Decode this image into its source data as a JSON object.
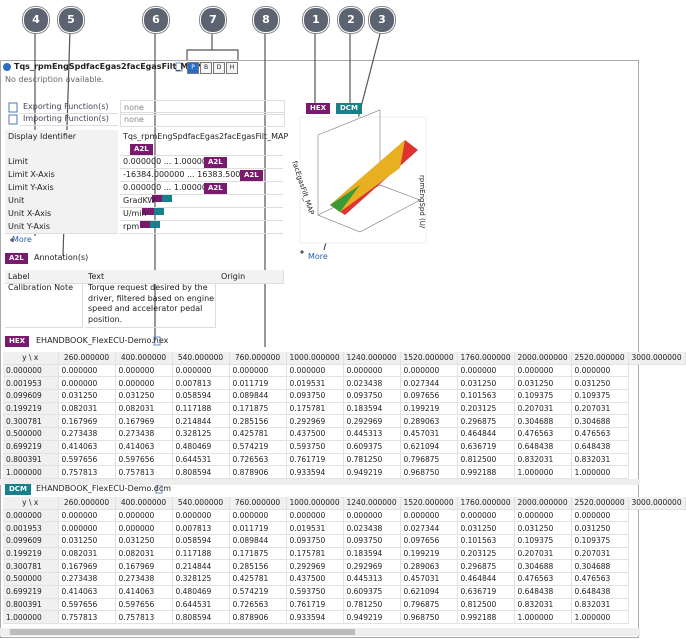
{
  "callouts": [
    "1",
    "2",
    "3",
    "4",
    "5",
    "6",
    "7",
    "8"
  ],
  "header": {
    "title": "Tqs_rpmEngSpdfacEgas2facEgasFilt_MAP",
    "buttons": [
      "P",
      "B",
      "D",
      "H"
    ],
    "description": "No description available."
  },
  "functions": [
    {
      "label": "Exporting Function(s)",
      "value": "none"
    },
    {
      "label": "Importing Function(s)",
      "value": "none"
    }
  ],
  "properties": [
    {
      "label": "Display Identifier",
      "value": "Tqs_rpmEngSpdfacEgas2facEgasFilt_MAP",
      "badge": "A2L"
    },
    {
      "label": "Limit",
      "value": "0.000000 ... 1.000000",
      "badge": "A2L"
    },
    {
      "label": "Limit X-Axis",
      "value": "-16384.000000 ... 16383.500000",
      "badge": "A2L"
    },
    {
      "label": "Limit Y-Axis",
      "value": "0.000000 ... 1.000000",
      "badge": "A2L"
    },
    {
      "label": "Unit",
      "value": "GradKW"
    },
    {
      "label": "Unit X-Axis",
      "value": "U/min"
    },
    {
      "label": "Unit Y-Axis",
      "value": "rpm"
    }
  ],
  "more_left": "More",
  "annotations": {
    "badge": "A2L",
    "title": "Annotation(s)",
    "columns": [
      "Label",
      "Text",
      "Origin"
    ],
    "rows": [
      [
        "Calibration Note",
        "Torque request desired by the driver, filtered based on engine speed and accelerator pedal position."
      ]
    ]
  },
  "hex": {
    "badge": "HEX",
    "file": "EHANDBOOK_FlexECU-Demo.hex",
    "columns": [
      "y \\ x",
      "260.000000",
      "400.000000",
      "540.000000",
      "760.000000",
      "1000.000000",
      "1240.000000",
      "1520.000000",
      "1760.000000",
      "2000.000000",
      "2520.000000",
      "3000.000000"
    ],
    "rows": [
      [
        "0.000000",
        "0.000000",
        "0.000000",
        "0.000000",
        "0.000000",
        "0.000000",
        "0.000000",
        "0.000000",
        "0.000000",
        "0.000000",
        "0.000000"
      ],
      [
        "0.001953",
        "0.000000",
        "0.000000",
        "0.007813",
        "0.011719",
        "0.019531",
        "0.023438",
        "0.027344",
        "0.031250",
        "0.031250",
        "0.031250"
      ],
      [
        "0.099609",
        "0.031250",
        "0.031250",
        "0.058594",
        "0.089844",
        "0.093750",
        "0.093750",
        "0.097656",
        "0.101563",
        "0.109375",
        "0.109375"
      ],
      [
        "0.199219",
        "0.082031",
        "0.082031",
        "0.117188",
        "0.171875",
        "0.175781",
        "0.183594",
        "0.199219",
        "0.203125",
        "0.207031",
        "0.207031"
      ],
      [
        "0.300781",
        "0.167969",
        "0.167969",
        "0.214844",
        "0.285156",
        "0.292969",
        "0.292969",
        "0.289063",
        "0.296875",
        "0.304688",
        "0.304688"
      ],
      [
        "0.500000",
        "0.273438",
        "0.273438",
        "0.328125",
        "0.425781",
        "0.437500",
        "0.445313",
        "0.457031",
        "0.464844",
        "0.476563",
        "0.476563"
      ],
      [
        "0.699219",
        "0.414063",
        "0.414063",
        "0.480469",
        "0.574219",
        "0.593750",
        "0.609375",
        "0.621094",
        "0.636719",
        "0.648438",
        "0.648438"
      ],
      [
        "0.800391",
        "0.597656",
        "0.597656",
        "0.644531",
        "0.726563",
        "0.761719",
        "0.781250",
        "0.796875",
        "0.812500",
        "0.832031",
        "0.832031"
      ],
      [
        "1.000000",
        "0.757813",
        "0.757813",
        "0.808594",
        "0.878906",
        "0.933594",
        "0.949219",
        "0.968750",
        "0.992188",
        "1.000000",
        "1.000000"
      ]
    ]
  },
  "dcm": {
    "badge": "DCM",
    "file": "EHANDBOOK_FlexECU-Demo.dcm",
    "columns": [
      "y \\ x",
      "260.000000",
      "400.000000",
      "540.000000",
      "760.000000",
      "1000.000000",
      "1240.000000",
      "1520.000000",
      "1760.000000",
      "2000.000000",
      "2520.000000",
      "3000.000000"
    ],
    "rows": [
      [
        "0.000000",
        "0.000000",
        "0.000000",
        "0.000000",
        "0.000000",
        "0.000000",
        "0.000000",
        "0.000000",
        "0.000000",
        "0.000000",
        "0.000000"
      ],
      [
        "0.001953",
        "0.000000",
        "0.000000",
        "0.007813",
        "0.011719",
        "0.019531",
        "0.023438",
        "0.027344",
        "0.031250",
        "0.031250",
        "0.031250"
      ],
      [
        "0.099609",
        "0.031250",
        "0.031250",
        "0.058594",
        "0.089844",
        "0.093750",
        "0.093750",
        "0.097656",
        "0.101563",
        "0.109375",
        "0.109375"
      ],
      [
        "0.199219",
        "0.082031",
        "0.082031",
        "0.117188",
        "0.171875",
        "0.175781",
        "0.183594",
        "0.199219",
        "0.203125",
        "0.207031",
        "0.207031"
      ],
      [
        "0.300781",
        "0.167969",
        "0.167969",
        "0.214844",
        "0.285156",
        "0.292969",
        "0.292969",
        "0.289063",
        "0.296875",
        "0.304688",
        "0.304688"
      ],
      [
        "0.500000",
        "0.273438",
        "0.273438",
        "0.328125",
        "0.425781",
        "0.437500",
        "0.445313",
        "0.457031",
        "0.464844",
        "0.476563",
        "0.476563"
      ],
      [
        "0.699219",
        "0.414063",
        "0.414063",
        "0.480469",
        "0.574219",
        "0.593750",
        "0.609375",
        "0.621094",
        "0.636719",
        "0.648438",
        "0.648438"
      ],
      [
        "0.800391",
        "0.597656",
        "0.597656",
        "0.644531",
        "0.726563",
        "0.761719",
        "0.781250",
        "0.796875",
        "0.812500",
        "0.832031",
        "0.832031"
      ],
      [
        "1.000000",
        "0.757813",
        "0.757813",
        "0.808594",
        "0.878906",
        "0.933594",
        "0.949219",
        "0.968750",
        "0.992188",
        "1.000000",
        "1.000000"
      ]
    ]
  },
  "preview": {
    "tabs": [
      "HEX",
      "DCM"
    ],
    "axis_labels": [
      "facEgasFilt_MAP",
      "rpmEngSpd (U/"
    ],
    "more": "More"
  }
}
